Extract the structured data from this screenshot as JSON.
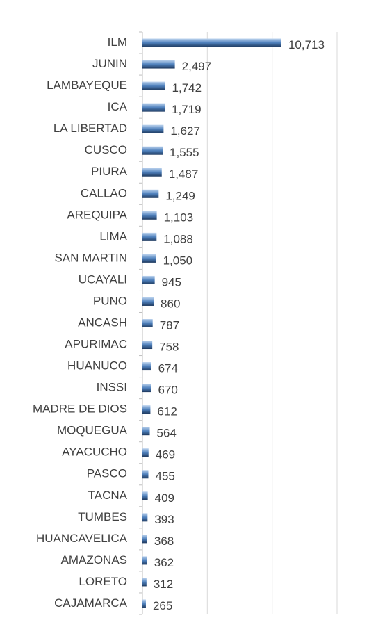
{
  "chart_data": {
    "type": "bar",
    "orientation": "horizontal",
    "categories": [
      "ILM",
      "JUNIN",
      "LAMBAYEQUE",
      "ICA",
      "LA LIBERTAD",
      "CUSCO",
      "PIURA",
      "CALLAO",
      "AREQUIPA",
      "LIMA",
      "SAN MARTIN",
      "UCAYALI",
      "PUNO",
      "ANCASH",
      "APURIMAC",
      "HUANUCO",
      "INSSI",
      "MADRE DE DIOS",
      "MOQUEGUA",
      "AYACUCHO",
      "PASCO",
      "TACNA",
      "TUMBES",
      "HUANCAVELICA",
      "AMAZONAS",
      "LORETO",
      "CAJAMARCA"
    ],
    "values": [
      10713,
      2497,
      1742,
      1719,
      1627,
      1555,
      1487,
      1249,
      1103,
      1088,
      1050,
      945,
      860,
      787,
      758,
      674,
      670,
      612,
      564,
      469,
      455,
      409,
      393,
      368,
      362,
      312,
      265
    ],
    "value_labels": [
      "10,713",
      "2,497",
      "1,742",
      "1,719",
      "1,627",
      "1,555",
      "1,487",
      "1,249",
      "1,103",
      "1,088",
      "1,050",
      "945",
      "860",
      "787",
      "758",
      "674",
      "670",
      "612",
      "564",
      "469",
      "455",
      "409",
      "393",
      "368",
      "362",
      "312",
      "265"
    ],
    "color": "#4f81bd",
    "xlim": [
      0,
      15000
    ],
    "xticks": [
      0,
      5000,
      10000,
      15000
    ],
    "grid": true
  }
}
